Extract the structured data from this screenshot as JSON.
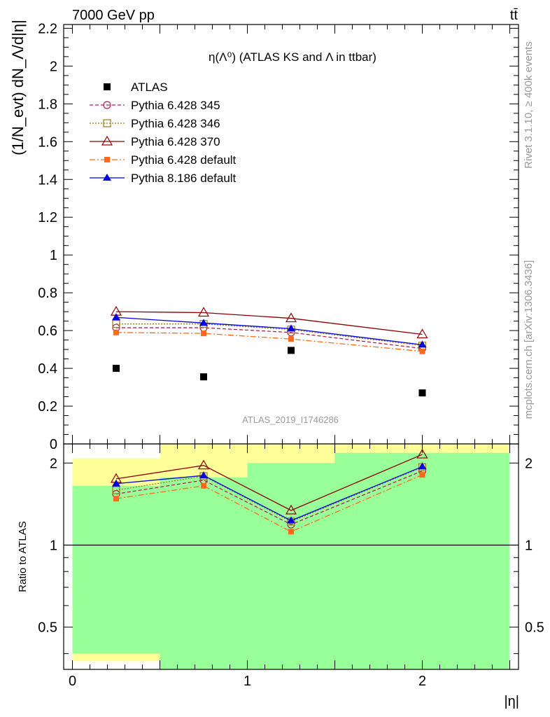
{
  "header": {
    "left": "7000 GeV pp",
    "right": "tt̄"
  },
  "side_labels": {
    "rivet": "Rivet 3.1.10, ≥ 400k events",
    "mcplots": "mcplots.cern.ch [arXiv:1306.3436]"
  },
  "chart_data": [
    {
      "type": "line",
      "title": "η(Λ⁰) (ATLAS KS and Λ in ttbar)",
      "ylabel": "(1/N_evt) dN_Λ/d|η|",
      "xlabel": "",
      "watermark": "ATLAS_2019_I1746286",
      "xlim": [
        -0.05,
        2.55
      ],
      "ylim": [
        0,
        2.22
      ],
      "yticks": [
        "0.2",
        "0.4",
        "0.6",
        "0.8",
        "1",
        "1.2",
        "1.4",
        "1.6",
        "1.8",
        "2",
        "2.2"
      ],
      "ytick_values": [
        0.2,
        0.4,
        0.6,
        0.8,
        1,
        1.2,
        1.4,
        1.6,
        1.8,
        2,
        2.2
      ],
      "x": [
        0.25,
        0.75,
        1.25,
        2.0
      ],
      "series": [
        {
          "name": "ATLAS",
          "values": [
            0.4,
            0.355,
            0.495,
            0.27
          ],
          "color": "#000000",
          "marker": "square",
          "line": "none"
        },
        {
          "name": "Pythia 6.428 345",
          "values": [
            0.615,
            0.615,
            0.59,
            0.505
          ],
          "color": "#b2224f",
          "marker": "circle-open",
          "line": "dashed"
        },
        {
          "name": "Pythia 6.428 346",
          "values": [
            0.635,
            0.635,
            0.605,
            0.52
          ],
          "color": "#9b7a1d",
          "marker": "square-open",
          "line": "dotted"
        },
        {
          "name": "Pythia 6.428 370",
          "values": [
            0.7,
            0.695,
            0.665,
            0.58
          ],
          "color": "#8b0000",
          "marker": "triangle-open",
          "line": "solid"
        },
        {
          "name": "Pythia 6.428 default",
          "values": [
            0.59,
            0.585,
            0.555,
            0.49
          ],
          "color": "#ff6a1a",
          "marker": "square-filled",
          "line": "dashdot"
        },
        {
          "name": "Pythia 8.186 default",
          "values": [
            0.67,
            0.64,
            0.61,
            0.525
          ],
          "color": "#0000e0",
          "marker": "triangle-filled",
          "line": "solid"
        }
      ]
    },
    {
      "type": "line",
      "ylabel": "Ratio to ATLAS",
      "xlabel": "|η|",
      "log_y": true,
      "xlim": [
        -0.05,
        2.55
      ],
      "ylim": [
        0.35,
        2.35
      ],
      "yticks": [
        "0.5",
        "1",
        "2"
      ],
      "ytick_values": [
        0.5,
        1,
        2
      ],
      "xticks": [
        "0",
        "1",
        "2"
      ],
      "xtick_values": [
        0,
        1,
        2
      ],
      "reference_line": 1,
      "bands": [
        {
          "x0": 0,
          "x1": 0.5,
          "yellow": [
            0.375,
            2.08
          ],
          "green": [
            0.4,
            1.65
          ]
        },
        {
          "x0": 0.5,
          "x1": 1.0,
          "yellow": [
            0.35,
            2.35
          ],
          "green": [
            0.35,
            1.77
          ]
        },
        {
          "x0": 1.0,
          "x1": 1.5,
          "yellow": [
            0.35,
            2.35
          ],
          "green": [
            0.35,
            2.0
          ]
        },
        {
          "x0": 1.5,
          "x1": 2.5,
          "yellow": [
            0.35,
            2.35
          ],
          "green": [
            0.35,
            2.18
          ]
        }
      ],
      "x": [
        0.25,
        0.75,
        1.25,
        2.0
      ],
      "series": [
        {
          "name": "Pythia 6.428 345",
          "values": [
            1.54,
            1.73,
            1.19,
            1.87
          ]
        },
        {
          "name": "Pythia 6.428 346",
          "values": [
            1.59,
            1.79,
            1.22,
            1.93
          ]
        },
        {
          "name": "Pythia 6.428 370",
          "values": [
            1.75,
            1.96,
            1.34,
            2.15
          ]
        },
        {
          "name": "Pythia 6.428 default",
          "values": [
            1.48,
            1.65,
            1.12,
            1.81
          ]
        },
        {
          "name": "Pythia 8.186 default",
          "values": [
            1.68,
            1.8,
            1.23,
            1.94
          ]
        }
      ]
    }
  ]
}
